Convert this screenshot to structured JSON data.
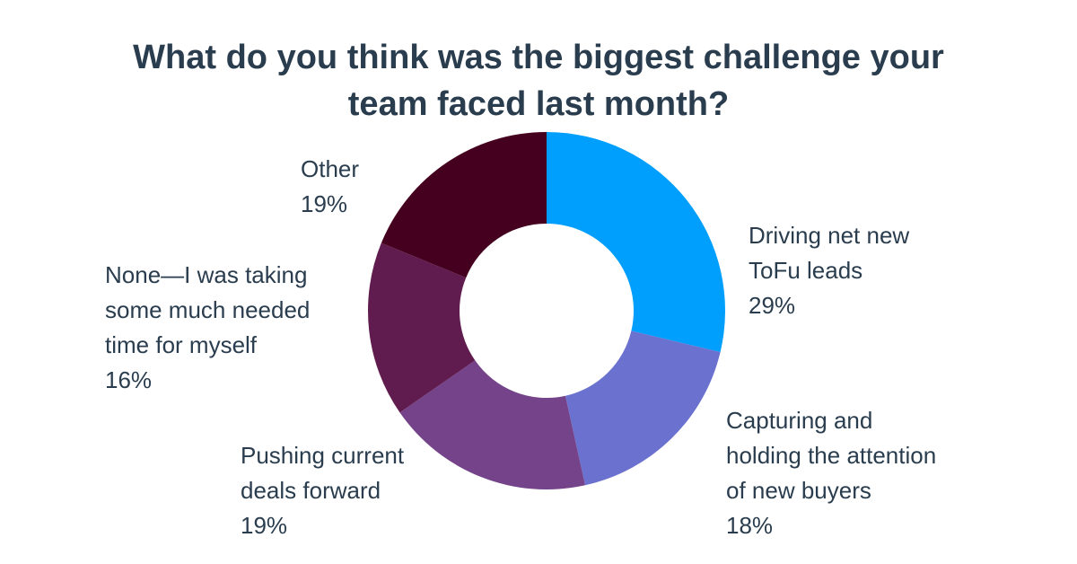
{
  "chart_data": {
    "type": "pie",
    "variant": "donut",
    "title": "What do you think was the biggest challenge your team faced last month?",
    "slices": [
      {
        "label": "Driving net new ToFu leads",
        "label_lines": [
          "Driving net new",
          "ToFu leads"
        ],
        "value": 29,
        "pct_label": "29%",
        "color": "#009ffd"
      },
      {
        "label": "Capturing and holding the attention of new buyers",
        "label_lines": [
          "Capturing and",
          "holding the attention",
          "of new buyers"
        ],
        "value": 18,
        "pct_label": "18%",
        "color": "#6a71ce"
      },
      {
        "label": "Pushing current deals forward",
        "label_lines": [
          "Pushing current",
          "deals forward"
        ],
        "value": 19,
        "pct_label": "19%",
        "color": "#744389"
      },
      {
        "label": "None—I was taking some much needed time for myself",
        "label_lines": [
          "None—I was taking",
          "some much needed",
          "time for myself"
        ],
        "value": 16,
        "pct_label": "16%",
        "color": "#611c4f"
      },
      {
        "label": "Other",
        "label_lines": [
          "Other"
        ],
        "value": 19,
        "pct_label": "19%",
        "color": "#46001f"
      }
    ]
  }
}
